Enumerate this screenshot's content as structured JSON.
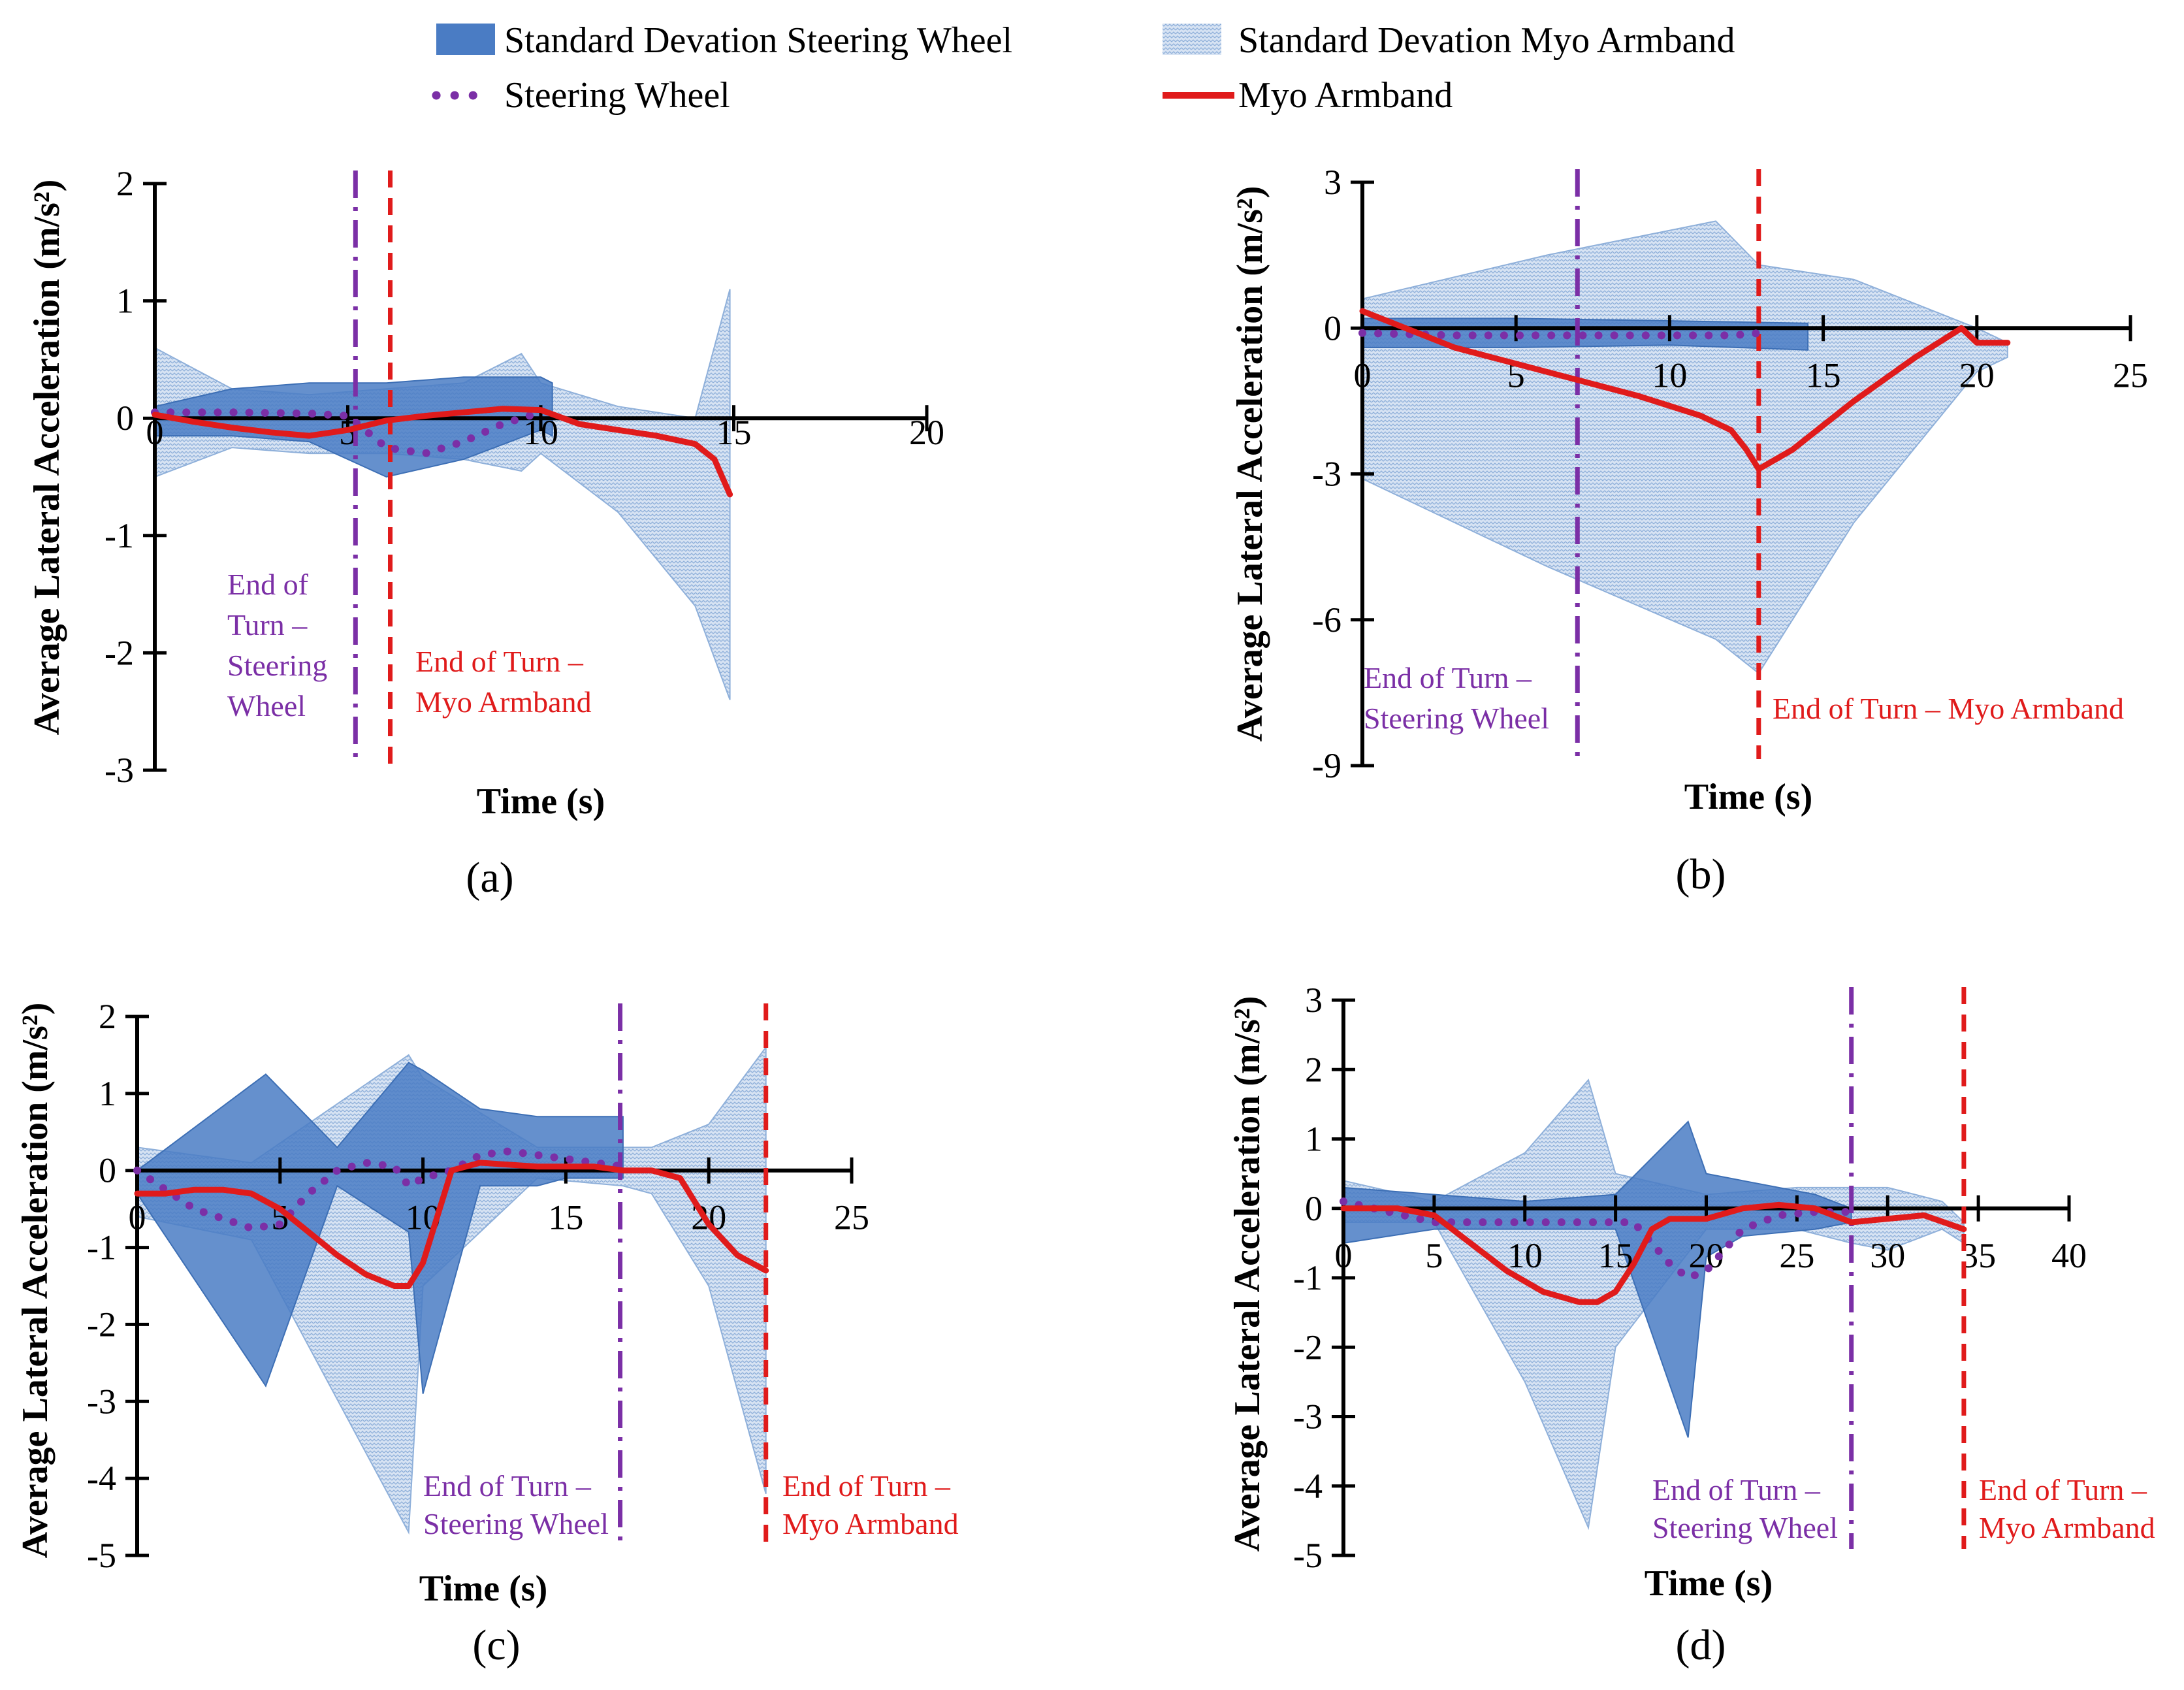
{
  "legend": {
    "items": [
      {
        "label": "Standard Devation Steering Wheel",
        "kind": "band-solid"
      },
      {
        "label": "Standard Devation Myo Armband",
        "kind": "band-hatched"
      },
      {
        "label": "Steering Wheel",
        "kind": "dotted-line"
      },
      {
        "label": "Myo Armband",
        "kind": "solid-line"
      }
    ]
  },
  "colors": {
    "steering_band": "#4a7cc4",
    "myo_band": "#c9d9ee",
    "steering_line": "#7b2fa6",
    "myo_line": "#e01b1b",
    "steering_marker": "#7b2fa6",
    "myo_marker": "#e01b1b"
  },
  "chart_data": [
    {
      "id": "a",
      "type": "line",
      "panel_label": "(a)",
      "xlabel": "Time (s)",
      "ylabel": "Average Lateral Acceleration (m/s²)",
      "xlim": [
        0,
        20
      ],
      "ylim": [
        -3,
        2
      ],
      "xticks": [
        0,
        5,
        10,
        15,
        20
      ],
      "yticks": [
        -3,
        -2,
        -1,
        0,
        1,
        2
      ],
      "markers": [
        {
          "x": 5.2,
          "style": "dashdot",
          "series": "steering",
          "text_lines": [
            "End of",
            "Turn –",
            "Steering",
            "Wheel"
          ]
        },
        {
          "x": 6.1,
          "style": "dashed",
          "series": "myo",
          "text_lines": [
            "End of Turn –",
            "Myo Armband"
          ]
        }
      ],
      "series": [
        {
          "name": "Steering Wheel",
          "x": [
            0,
            2,
            4,
            5,
            6,
            7,
            8,
            9,
            9.5,
            10
          ],
          "y": [
            0.05,
            0.05,
            0.04,
            0.02,
            -0.25,
            -0.3,
            -0.2,
            -0.05,
            0.0,
            0.05
          ]
        },
        {
          "name": "Myo Armband",
          "x": [
            0,
            1,
            2,
            3,
            4,
            5,
            6,
            7,
            8,
            9,
            10,
            11,
            12,
            13,
            14,
            14.5,
            14.9
          ],
          "y": [
            0.03,
            -0.03,
            -0.08,
            -0.12,
            -0.15,
            -0.1,
            -0.02,
            0.02,
            0.05,
            0.08,
            0.07,
            -0.05,
            -0.1,
            -0.15,
            -0.22,
            -0.35,
            -0.65
          ]
        }
      ],
      "bands": [
        {
          "name": "Standard Devation Steering Wheel",
          "x": [
            0,
            2,
            4,
            6,
            8,
            10,
            10.3
          ],
          "upper": [
            0.1,
            0.25,
            0.3,
            0.3,
            0.35,
            0.35,
            0.3
          ],
          "lower": [
            -0.15,
            -0.15,
            -0.2,
            -0.5,
            -0.35,
            -0.1,
            -0.15
          ]
        },
        {
          "name": "Standard Devation Myo Armband",
          "x": [
            0,
            2,
            4,
            6,
            8,
            9.5,
            10,
            12,
            14,
            14.9
          ],
          "upper": [
            0.6,
            0.25,
            0.2,
            0.25,
            0.3,
            0.55,
            0.3,
            0.1,
            0.0,
            1.1
          ],
          "lower": [
            -0.5,
            -0.25,
            -0.3,
            -0.3,
            -0.35,
            -0.45,
            -0.3,
            -0.8,
            -1.6,
            -2.4
          ]
        }
      ]
    },
    {
      "id": "b",
      "type": "line",
      "panel_label": "(b)",
      "xlabel": "Time (s)",
      "ylabel": "Average Lateral Acceleration (m/s²)",
      "xlim": [
        0,
        25
      ],
      "ylim": [
        -9,
        3
      ],
      "xticks": [
        0,
        5,
        10,
        15,
        20,
        25
      ],
      "yticks": [
        -9,
        -6,
        -3,
        0,
        3
      ],
      "markers": [
        {
          "x": 7,
          "style": "dashdot",
          "series": "steering",
          "text_lines": [
            "End of Turn –",
            "Steering Wheel"
          ]
        },
        {
          "x": 12.9,
          "style": "dashed",
          "series": "myo",
          "text_lines": [
            "End of Turn – Myo Armband"
          ]
        }
      ],
      "series": [
        {
          "name": "Steering Wheel",
          "x": [
            0,
            3,
            6,
            9,
            12,
            13
          ],
          "y": [
            -0.1,
            -0.15,
            -0.15,
            -0.15,
            -0.15,
            -0.1
          ]
        },
        {
          "name": "Myo Armband",
          "x": [
            0,
            3,
            6,
            9,
            11,
            12,
            12.5,
            12.9,
            14,
            16,
            18,
            19.5,
            20,
            21
          ],
          "y": [
            0.35,
            -0.4,
            -0.9,
            -1.4,
            -1.8,
            -2.1,
            -2.5,
            -2.9,
            -2.5,
            -1.5,
            -0.6,
            0.0,
            -0.3,
            -0.3
          ]
        }
      ],
      "bands": [
        {
          "name": "Standard Devation Steering Wheel",
          "x": [
            0,
            5,
            10,
            14.5
          ],
          "upper": [
            0.2,
            0.2,
            0.15,
            0.1
          ],
          "lower": [
            -0.4,
            -0.4,
            -0.35,
            -0.45
          ]
        },
        {
          "name": "Standard Devation Myo Armband",
          "x": [
            0,
            6,
            11.5,
            12.9,
            16,
            20,
            21
          ],
          "upper": [
            0.6,
            1.5,
            2.2,
            1.3,
            1.0,
            0.0,
            -0.3
          ],
          "lower": [
            -3.1,
            -4.9,
            -6.4,
            -7.1,
            -4.0,
            -0.9,
            -0.6
          ]
        }
      ]
    },
    {
      "id": "c",
      "type": "line",
      "panel_label": "(c)",
      "xlabel": "Time (s)",
      "ylabel": "Average Lateral Acceleration (m/s²)",
      "xlim": [
        0,
        25
      ],
      "ylim": [
        -5,
        2
      ],
      "xticks": [
        0,
        5,
        10,
        15,
        20,
        25
      ],
      "yticks": [
        -5,
        -4,
        -3,
        -2,
        -1,
        0,
        1,
        2
      ],
      "markers": [
        {
          "x": 16.9,
          "style": "dashdot",
          "series": "steering",
          "text_lines": [
            "End of Turn –",
            "Steering Wheel"
          ]
        },
        {
          "x": 22,
          "style": "dashed",
          "series": "myo",
          "text_lines": [
            "End of Turn –",
            "Myo Armband"
          ]
        }
      ],
      "series": [
        {
          "name": "Steering Wheel",
          "x": [
            0,
            2,
            4,
            5,
            6,
            7,
            8,
            9,
            9.5,
            10,
            11,
            12,
            13,
            14,
            15,
            16,
            17
          ],
          "y": [
            0.0,
            -0.5,
            -0.75,
            -0.7,
            -0.3,
            0.0,
            0.1,
            0.05,
            -0.2,
            -0.1,
            0.0,
            0.2,
            0.25,
            0.2,
            0.15,
            0.1,
            0.05
          ]
        },
        {
          "name": "Myo Armband",
          "x": [
            0,
            1,
            2,
            3,
            4,
            5,
            6,
            7,
            8,
            9,
            9.5,
            10,
            11,
            12,
            14,
            16,
            17,
            18,
            19,
            20,
            21,
            22
          ],
          "y": [
            -0.3,
            -0.3,
            -0.25,
            -0.25,
            -0.3,
            -0.5,
            -0.8,
            -1.1,
            -1.35,
            -1.5,
            -1.5,
            -1.2,
            0.0,
            0.1,
            0.05,
            0.05,
            0.0,
            0.0,
            -0.1,
            -0.7,
            -1.1,
            -1.3
          ]
        }
      ],
      "bands": [
        {
          "name": "Standard Devation Steering Wheel",
          "x": [
            0,
            4.5,
            7,
            9.5,
            10,
            12,
            14,
            15,
            17
          ],
          "upper": [
            0.0,
            1.25,
            0.3,
            1.4,
            1.3,
            0.8,
            0.7,
            0.7,
            0.7
          ],
          "lower": [
            -0.3,
            -2.8,
            -0.2,
            -0.8,
            -2.9,
            -0.2,
            -0.2,
            -0.1,
            -0.1
          ]
        },
        {
          "name": "Standard Devation Myo Armband",
          "x": [
            0,
            4,
            9.5,
            10,
            14,
            17,
            18,
            20,
            22
          ],
          "upper": [
            0.3,
            0.1,
            1.5,
            1.2,
            0.3,
            0.3,
            0.3,
            0.6,
            1.6
          ],
          "lower": [
            -0.6,
            -0.9,
            -4.7,
            -1.5,
            -0.1,
            -0.2,
            -0.3,
            -1.5,
            -4.2
          ]
        }
      ]
    },
    {
      "id": "d",
      "type": "line",
      "panel_label": "(d)",
      "xlabel": "Time (s)",
      "ylabel": "Average Lateral Acceleration (m/s²)",
      "xlim": [
        0,
        40
      ],
      "ylim": [
        -5,
        3
      ],
      "xticks": [
        0,
        5,
        10,
        15,
        20,
        25,
        30,
        35,
        40
      ],
      "yticks": [
        -5,
        -4,
        -3,
        -2,
        -1,
        0,
        1,
        2,
        3
      ],
      "markers": [
        {
          "x": 28,
          "style": "dashdot",
          "series": "steering",
          "text_lines": [
            "End of Turn –",
            "Steering Wheel"
          ]
        },
        {
          "x": 34.2,
          "style": "dashed",
          "series": "myo",
          "text_lines": [
            "End of Turn –",
            "Myo Armband"
          ]
        }
      ],
      "series": [
        {
          "name": "Steering Wheel",
          "x": [
            0,
            5,
            10,
            14,
            16,
            18,
            19,
            20,
            22,
            24,
            26,
            28
          ],
          "y": [
            0.1,
            -0.2,
            -0.2,
            -0.2,
            -0.2,
            -0.8,
            -1.0,
            -0.9,
            -0.3,
            -0.1,
            -0.05,
            -0.05
          ]
        },
        {
          "name": "Myo Armband",
          "x": [
            0,
            3,
            5,
            7,
            9,
            11,
            13,
            14,
            15,
            16,
            17,
            18,
            20,
            22,
            24,
            26,
            28,
            30,
            32,
            34.2
          ],
          "y": [
            0.0,
            0.0,
            -0.1,
            -0.5,
            -0.9,
            -1.2,
            -1.35,
            -1.35,
            -1.2,
            -0.8,
            -0.3,
            -0.15,
            -0.15,
            0.0,
            0.05,
            0.0,
            -0.2,
            -0.15,
            -0.1,
            -0.3
          ]
        }
      ],
      "bands": [
        {
          "name": "Standard Devation Steering Wheel",
          "x": [
            0,
            5,
            10,
            15,
            19,
            20,
            22,
            26,
            28
          ],
          "upper": [
            0.3,
            0.2,
            0.1,
            0.2,
            1.25,
            0.5,
            0.4,
            0.2,
            0.0
          ],
          "lower": [
            -0.5,
            -0.3,
            -0.3,
            -0.3,
            -3.3,
            -0.7,
            -0.4,
            -0.3,
            -0.2
          ]
        },
        {
          "name": "Standard Devation Myo Armband",
          "x": [
            0,
            5,
            10,
            13.5,
            15,
            20,
            25,
            28,
            30,
            33,
            34.2
          ],
          "upper": [
            0.4,
            0.1,
            0.8,
            1.85,
            0.5,
            0.2,
            0.3,
            0.3,
            0.3,
            0.1,
            -0.2
          ],
          "lower": [
            -0.2,
            -0.2,
            -2.5,
            -4.6,
            -2.0,
            -0.3,
            -0.3,
            -0.5,
            -0.6,
            -0.3,
            -0.5
          ]
        }
      ]
    }
  ]
}
